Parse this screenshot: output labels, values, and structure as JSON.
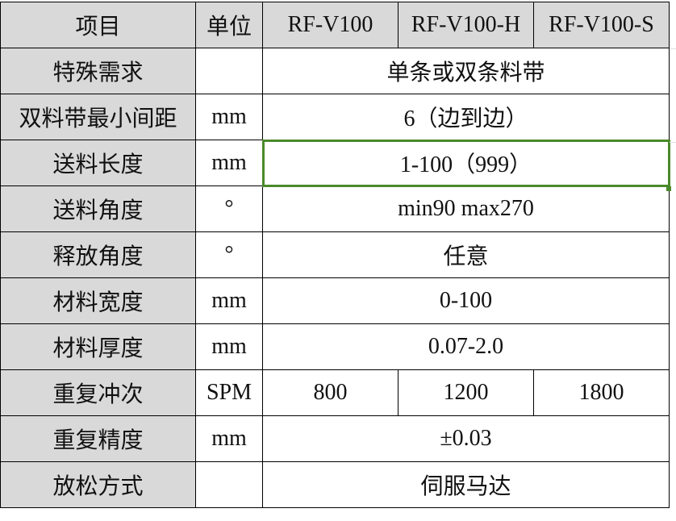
{
  "header": [
    "项目",
    "单位",
    "RF-V100",
    "RF-V100-H",
    "RF-V100-S"
  ],
  "rows": [
    {
      "item": "特殊需求",
      "unit": "",
      "value": "单条或双条料带"
    },
    {
      "item": "双料带最小间距",
      "unit": "mm",
      "value": "6（边到边）"
    },
    {
      "item": "送料长度",
      "unit": "mm",
      "value": "1-100（999）"
    },
    {
      "item": "送料角度",
      "unit": "°",
      "value": "min90 max270"
    },
    {
      "item": "释放角度",
      "unit": "°",
      "value": "任意"
    },
    {
      "item": "材料宽度",
      "unit": "mm",
      "value": "0-100"
    },
    {
      "item": "材料厚度",
      "unit": "mm",
      "value": "0.07-2.0"
    },
    {
      "item": "重复冲次",
      "unit": "SPM",
      "values": [
        "800",
        "1200",
        "1800"
      ]
    },
    {
      "item": "重复精度",
      "unit": "mm",
      "value": "±0.03"
    },
    {
      "item": "放松方式",
      "unit": "",
      "value": "伺服马达"
    }
  ],
  "selection_color": "#4a8a2a",
  "header_bg": "#d9d9d9"
}
